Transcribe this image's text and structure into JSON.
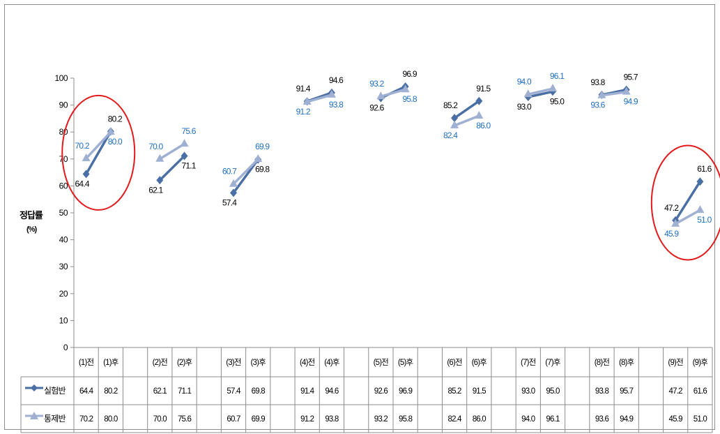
{
  "chart_data": {
    "type": "line",
    "ylabel": "정답률",
    "ylabel_unit": "(%)",
    "ylim": [
      0,
      100
    ],
    "yticks": [
      0,
      10,
      20,
      30,
      40,
      50,
      60,
      70,
      80,
      90,
      100
    ],
    "categories": [
      "(1)전",
      "(1)후",
      "",
      "(2)전",
      "(2)후",
      "",
      "(3)전",
      "(3)후",
      "",
      "(4)전",
      "(4)후",
      "",
      "(5)전",
      "(5)후",
      "",
      "(6)전",
      "(6)후",
      "",
      "(7)전",
      "(7)후",
      "",
      "(8)전",
      "(8)후",
      "",
      "(9)전",
      "(9)후"
    ],
    "series": [
      {
        "name": "실험반",
        "color": "#4a6fa5",
        "marker": "diamond",
        "values": [
          64.4,
          80.2,
          null,
          62.1,
          71.1,
          null,
          57.4,
          69.8,
          null,
          91.4,
          94.6,
          null,
          92.6,
          96.9,
          null,
          85.2,
          91.5,
          null,
          93.0,
          95.0,
          null,
          93.8,
          95.7,
          null,
          47.2,
          61.6
        ],
        "labels": [
          "64.4",
          "80.2",
          "",
          "62.1",
          "71.1",
          "",
          "57.4",
          "69.8",
          "",
          "91.4",
          "94.6",
          "",
          "92.6",
          "96.9",
          "",
          "85.2",
          "91.5",
          "",
          "93.0",
          "95.0",
          "",
          "93.8",
          "95.7",
          "",
          "47.2",
          "61.6"
        ]
      },
      {
        "name": "통제반",
        "color": "#9fb0d2",
        "marker": "triangle",
        "values": [
          70.2,
          80.0,
          null,
          70.0,
          75.6,
          null,
          60.7,
          69.9,
          null,
          91.2,
          93.8,
          null,
          93.2,
          95.8,
          null,
          82.4,
          86.0,
          null,
          94.0,
          96.1,
          null,
          93.6,
          94.9,
          null,
          45.9,
          51.0
        ],
        "labels": [
          "70.2",
          "80.0",
          "",
          "70.0",
          "75.6",
          "",
          "60.7",
          "69.9",
          "",
          "91.2",
          "93.8",
          "",
          "93.2",
          "95.8",
          "",
          "82.4",
          "86.0",
          "",
          "94.0",
          "96.1",
          "",
          "93.6",
          "94.9",
          "",
          "45.9",
          "51.0"
        ]
      }
    ],
    "data_table": true,
    "highlight_ellipse_color": "#e31a1c",
    "highlight_groups": [
      1,
      9
    ]
  }
}
